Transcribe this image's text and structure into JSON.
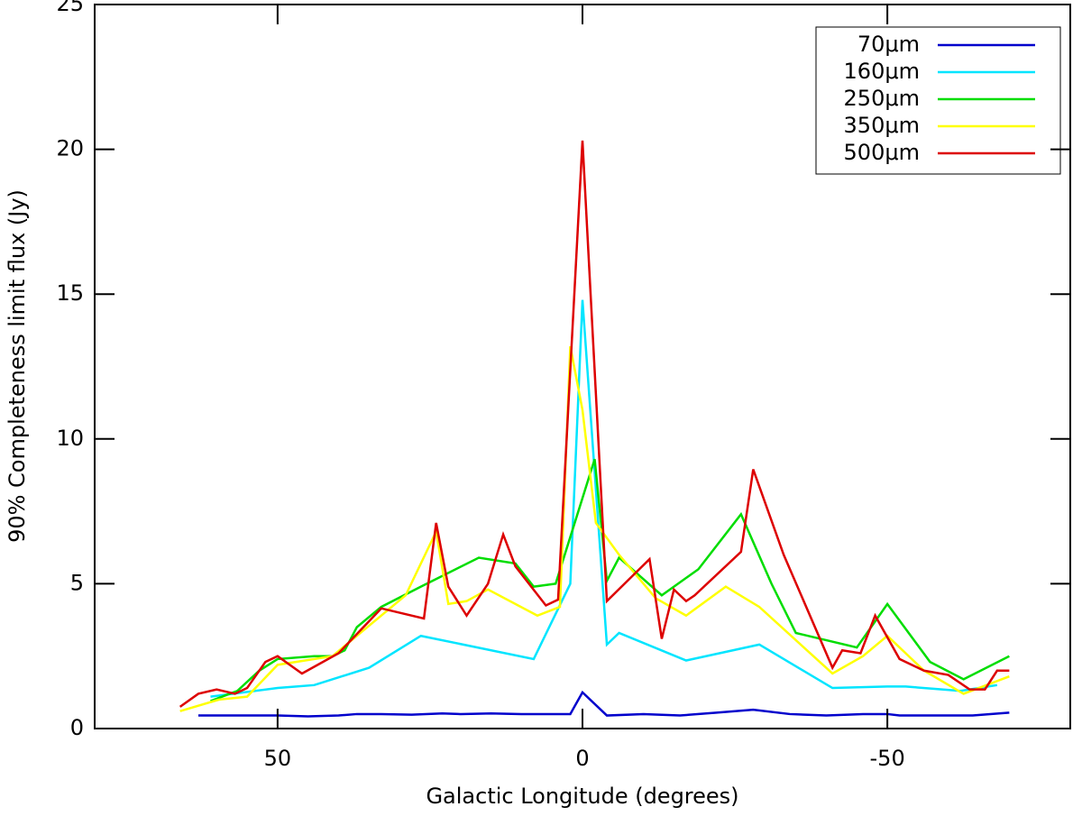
{
  "chart_data": {
    "type": "line",
    "xlabel": "Galactic Longitude (degrees)",
    "ylabel": "90% Completeness limit flux (Jy)",
    "xlim": [
      80,
      -80
    ],
    "ylim": [
      0,
      25
    ],
    "xticks": [
      50,
      0,
      -50
    ],
    "yticks": [
      0,
      5,
      10,
      15,
      20,
      25
    ],
    "legend": "upper right",
    "series": [
      {
        "name": "70μm",
        "color": "#0000cc",
        "x": [
          63,
          55,
          50,
          45,
          40,
          37,
          33,
          28,
          23,
          20,
          15,
          10,
          2,
          0,
          -4,
          -10,
          -16,
          -22,
          -28,
          -34,
          -40,
          -46,
          -50,
          -52,
          -58,
          -64,
          -70
        ],
        "values": [
          0.45,
          0.45,
          0.45,
          0.42,
          0.45,
          0.5,
          0.5,
          0.48,
          0.52,
          0.5,
          0.52,
          0.5,
          0.5,
          1.25,
          0.45,
          0.5,
          0.45,
          0.55,
          0.65,
          0.5,
          0.45,
          0.5,
          0.5,
          0.45,
          0.45,
          0.45,
          0.55
        ]
      },
      {
        "name": "160μm",
        "color": "#00e5ff",
        "x": [
          61,
          50,
          44,
          35,
          26.5,
          8,
          2,
          0,
          -4,
          -6,
          -17,
          -29,
          -41,
          -50,
          -53,
          -62,
          -68
        ],
        "values": [
          1.1,
          1.4,
          1.5,
          2.1,
          3.2,
          2.4,
          5.0,
          14.8,
          2.9,
          3.3,
          2.35,
          2.9,
          1.4,
          1.45,
          1.45,
          1.3,
          1.5
        ]
      },
      {
        "name": "250μm",
        "color": "#00dd00",
        "x": [
          61,
          56.6,
          53,
          50,
          44,
          41,
          39,
          37,
          33,
          26.5,
          17,
          11,
          8,
          4.4,
          -2,
          -4,
          -6,
          -13,
          -19,
          -26,
          -31,
          -35,
          -45,
          -50,
          -57,
          -62.5,
          -70
        ],
        "values": [
          0.95,
          1.3,
          2.0,
          2.4,
          2.5,
          2.5,
          2.7,
          3.5,
          4.2,
          4.9,
          5.9,
          5.7,
          4.9,
          5.0,
          9.3,
          5.1,
          5.9,
          4.6,
          5.5,
          7.4,
          5.0,
          3.3,
          2.8,
          4.3,
          2.3,
          1.7,
          2.5
        ]
      },
      {
        "name": "350μm",
        "color": "#ffff00",
        "x": [
          66,
          59.6,
          55,
          50,
          41,
          29,
          24,
          22,
          19,
          15.5,
          7.4,
          3.7,
          2,
          0,
          -2.2,
          -6,
          -12,
          -17,
          -23.5,
          -29,
          -41,
          -46,
          -50,
          -56,
          -62.5,
          -70
        ],
        "values": [
          0.6,
          1.0,
          1.1,
          2.2,
          2.5,
          4.6,
          6.8,
          4.3,
          4.4,
          4.8,
          3.9,
          4.2,
          13.2,
          11.0,
          7.1,
          6.0,
          4.5,
          3.9,
          4.9,
          4.2,
          1.9,
          2.5,
          3.2,
          2.0,
          1.2,
          1.8
        ]
      },
      {
        "name": "500μm",
        "color": "#dd0000",
        "x": [
          66,
          63,
          60,
          57,
          55,
          52,
          50,
          46,
          40,
          33,
          26,
          24,
          22,
          19,
          15.5,
          13,
          11,
          6,
          4,
          0,
          -4,
          -11,
          -13,
          -15,
          -17,
          -18.4,
          -26,
          -28,
          -33,
          -41,
          -42.6,
          -45.6,
          -48,
          -52,
          -56,
          -60,
          -63.5,
          -66,
          -68,
          -70
        ],
        "values": [
          0.75,
          1.2,
          1.35,
          1.2,
          1.4,
          2.3,
          2.5,
          1.9,
          2.6,
          4.15,
          3.8,
          7.1,
          4.9,
          3.9,
          5.0,
          6.7,
          5.6,
          4.25,
          4.45,
          20.3,
          4.4,
          5.85,
          3.1,
          4.8,
          4.4,
          4.6,
          6.1,
          8.95,
          6.0,
          2.1,
          2.7,
          2.6,
          3.9,
          2.4,
          2.0,
          1.85,
          1.35,
          1.35,
          2.0,
          2.0
        ]
      }
    ]
  }
}
